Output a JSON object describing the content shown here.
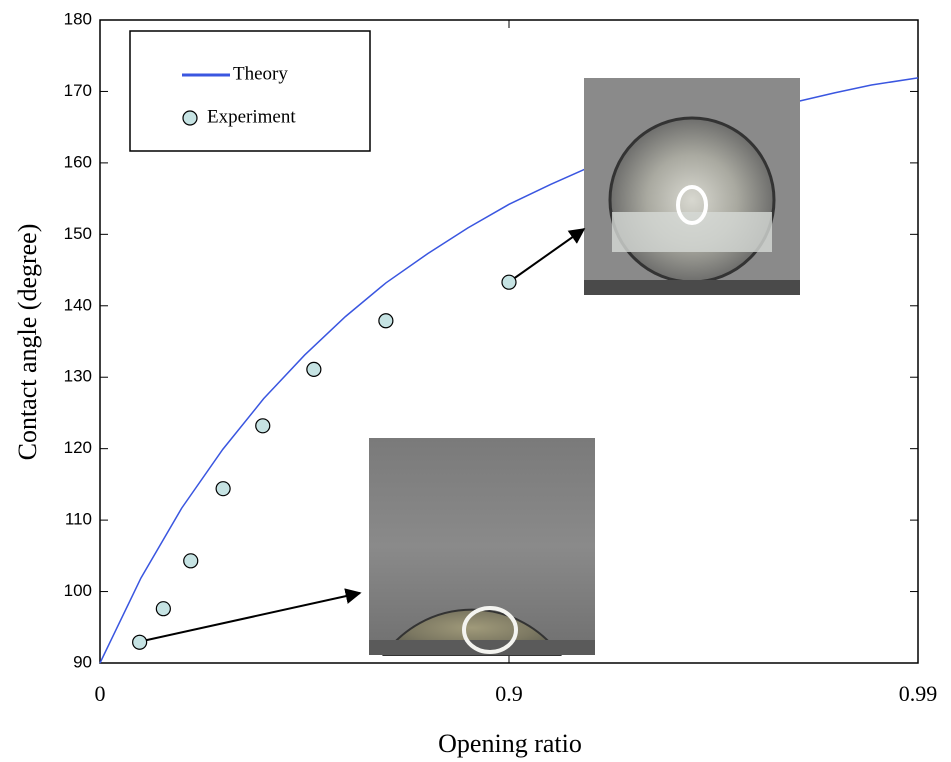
{
  "chart_data": {
    "type": "line",
    "x_label": "Opening ratio",
    "y_label": "Contact angle (degree)",
    "xscale": "log-complement",
    "xlim": [
      0,
      0.99
    ],
    "xticks": [
      0,
      0.9,
      0.99
    ],
    "ylim": [
      90,
      180
    ],
    "yticks": [
      90,
      100,
      110,
      120,
      130,
      140,
      150,
      160,
      170,
      180
    ],
    "legend": "upper left",
    "series": [
      {
        "name": "Theory",
        "color": "#3a56e0",
        "mode": "line",
        "x": [
          0,
          0.206,
          0.369,
          0.499,
          0.602,
          0.684,
          0.749,
          0.8,
          0.842,
          0.874,
          0.9,
          0.921,
          0.937,
          0.95,
          0.96,
          0.968,
          0.975,
          0.98,
          0.984,
          0.987,
          0.99
        ],
        "values": [
          90,
          101.9,
          111.7,
          119.9,
          127,
          133.1,
          138.5,
          143.2,
          147.3,
          150.9,
          154.2,
          157,
          159.5,
          161.8,
          163.8,
          165.6,
          167.1,
          168.5,
          169.8,
          170.9,
          171.9
        ]
      },
      {
        "name": "Experiment",
        "color": "#c6e3e3",
        "mode": "markers",
        "x": [
          0.2,
          0.3,
          0.4,
          0.5,
          0.6,
          0.7,
          0.8,
          0.9
        ],
        "values": [
          92.9,
          97.6,
          104.3,
          114.4,
          123.2,
          131.1,
          137.9,
          143.3
        ]
      }
    ]
  }
}
